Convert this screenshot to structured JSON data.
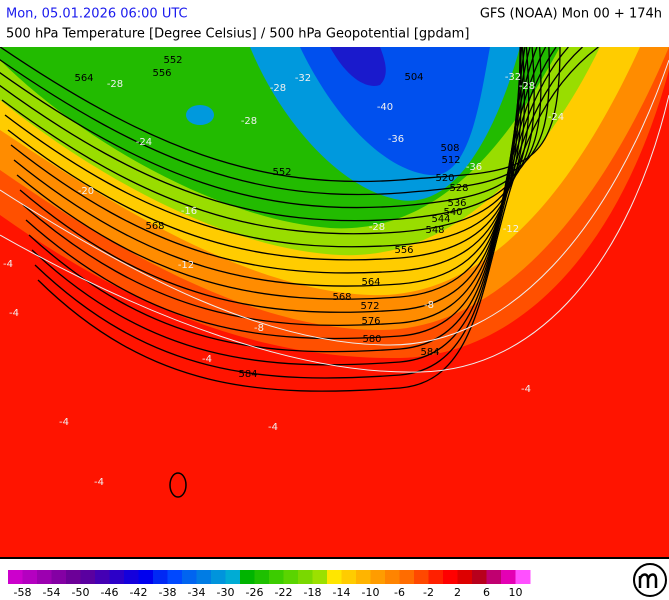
{
  "header": {
    "left": "Mon, 05.01.2026 06:00 UTC",
    "right": "GFS (NOAA) Mon 00 + 174h",
    "subtitle": "500 hPa Temperature [Degree Celsius] / 500 hPa Geopotential [gpdam]"
  },
  "map": {
    "geopotential_labels": [
      552,
      556,
      564,
      504,
      552,
      568,
      508,
      512,
      520,
      528,
      536,
      540,
      544,
      548,
      556,
      564,
      568,
      572,
      576,
      580,
      584,
      584
    ],
    "temperature_labels": [
      -28,
      -28,
      -32,
      -32,
      -28,
      -40,
      -28,
      -36,
      -24,
      -24,
      -36,
      -20,
      -16,
      -28,
      -12,
      -12,
      -4,
      -4,
      -8,
      -8,
      -4,
      -4,
      -4,
      -4,
      -4
    ]
  },
  "colorbar": {
    "colors": [
      "#cc00cc",
      "#b400c0",
      "#9c00b0",
      "#8400a4",
      "#6c0098",
      "#5a00a0",
      "#4400b4",
      "#2c00c8",
      "#1400dc",
      "#0000ee",
      "#0028f4",
      "#0048ff",
      "#0064f0",
      "#007ce4",
      "#0094dc",
      "#00acd4",
      "#00b400",
      "#1ec000",
      "#3ccc00",
      "#5ad400",
      "#7ad800",
      "#9ce000",
      "#ffe600",
      "#ffcc00",
      "#ffb400",
      "#ff9c00",
      "#ff8400",
      "#ff6c00",
      "#ff4800",
      "#ff2000",
      "#ff0000",
      "#dd0000",
      "#b8001c",
      "#c00070",
      "#e400b4",
      "#ff50ff"
    ],
    "labels": [
      -58,
      -54,
      -50,
      -46,
      -42,
      -38,
      -34,
      -30,
      -26,
      -22,
      -18,
      -14,
      -10,
      -6,
      -2,
      2,
      6,
      10
    ]
  }
}
